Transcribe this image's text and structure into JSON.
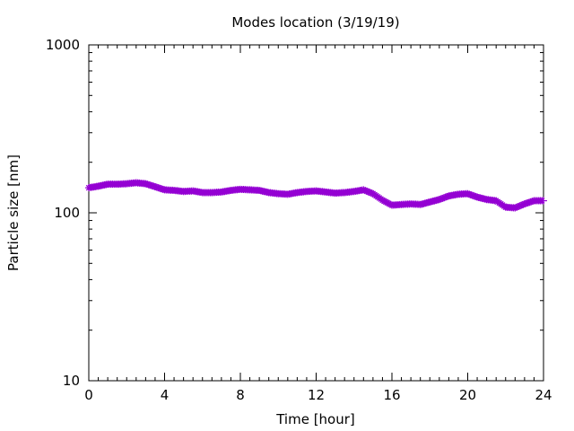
{
  "chart_data": {
    "type": "line",
    "title": "Modes location (3/19/19)",
    "xlabel": "Time [hour]",
    "ylabel": "Particle size [nm]",
    "xlim": [
      0,
      24
    ],
    "ylim": [
      10,
      1000
    ],
    "yscale": "log",
    "grid": false,
    "legend": "none",
    "xticks": [
      "0",
      "4",
      "8",
      "12",
      "16",
      "20",
      "24"
    ],
    "yticks": [
      "10",
      "100",
      "1000"
    ],
    "series": [
      {
        "color": "#9400d3",
        "marker": "star",
        "x": [
          0,
          0.5,
          1,
          1.5,
          2,
          2.5,
          3,
          3.5,
          4,
          4.5,
          5,
          5.5,
          6,
          6.5,
          7,
          7.5,
          8,
          8.5,
          9,
          9.5,
          10,
          10.5,
          11,
          11.5,
          12,
          12.5,
          13,
          13.5,
          14,
          14.5,
          15,
          15.5,
          16,
          16.5,
          17,
          17.5,
          18,
          18.5,
          19,
          19.5,
          20,
          20.5,
          21,
          21.5,
          22,
          22.5,
          23,
          23.5,
          24
        ],
        "y": [
          141,
          144,
          148,
          148,
          149,
          151,
          149,
          143,
          137,
          136,
          134,
          135,
          132,
          132,
          133,
          136,
          138,
          137,
          136,
          132,
          130,
          129,
          132,
          134,
          135,
          133,
          131,
          132,
          134,
          137,
          130,
          119,
          111,
          112,
          113,
          112,
          116,
          120,
          126,
          129,
          130,
          124,
          120,
          118,
          108,
          107,
          113,
          118,
          118
        ]
      }
    ]
  }
}
